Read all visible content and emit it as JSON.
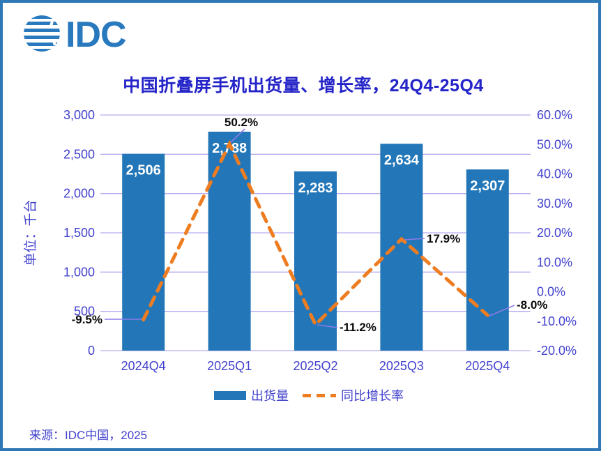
{
  "logo": {
    "text": "IDC"
  },
  "title": "中国折叠屏手机出货量、增长率，24Q4-25Q4",
  "source": "来源：IDC中国，2025",
  "colors": {
    "frame": "#2E78B5",
    "bar": "#2377B8",
    "line": "#EE7D22",
    "grid": "#B6ACF0",
    "leader": "#8A7CE8",
    "axis_text": "#4141CE",
    "title_text": "#2424C8",
    "data_label_text": "#0A0A0A",
    "bar_label_text": "#FFFFFF",
    "logo_blue": "#2879BE"
  },
  "chart_data": {
    "type": "combo-bar-line",
    "title": "中国折叠屏手机出货量、增长率，24Q4-25Q4",
    "categories": [
      "2024Q4",
      "2025Q1",
      "2025Q2",
      "2025Q3",
      "2025Q4"
    ],
    "series": [
      {
        "name": "出货量",
        "type": "bar",
        "axis": "left",
        "values": [
          2506,
          2788,
          2283,
          2634,
          2307
        ],
        "labels": [
          "2,506",
          "2,788",
          "2,283",
          "2,634",
          "2,307"
        ]
      },
      {
        "name": "同比增长率",
        "type": "line",
        "dashed": true,
        "axis": "right",
        "values": [
          -9.5,
          50.2,
          -11.2,
          17.9,
          -8.0
        ],
        "labels": [
          "-9.5%",
          "50.2%",
          "-11.2%",
          "17.9%",
          "-8.0%"
        ]
      }
    ],
    "left_axis": {
      "title": "单位：千台",
      "min": 0,
      "max": 3000,
      "step": 500,
      "tick_labels": [
        "0",
        "500",
        "1,000",
        "1,500",
        "2,000",
        "2,500",
        "3,000"
      ]
    },
    "right_axis": {
      "min": -20,
      "max": 60,
      "step": 10,
      "tick_labels": [
        "-20.0%",
        "-10.0%",
        "0.0%",
        "10.0%",
        "20.0%",
        "30.0%",
        "40.0%",
        "50.0%",
        "60.0%"
      ]
    },
    "legend": {
      "position": "bottom",
      "entries": [
        "出货量",
        "同比增长率"
      ]
    },
    "grid": true
  }
}
